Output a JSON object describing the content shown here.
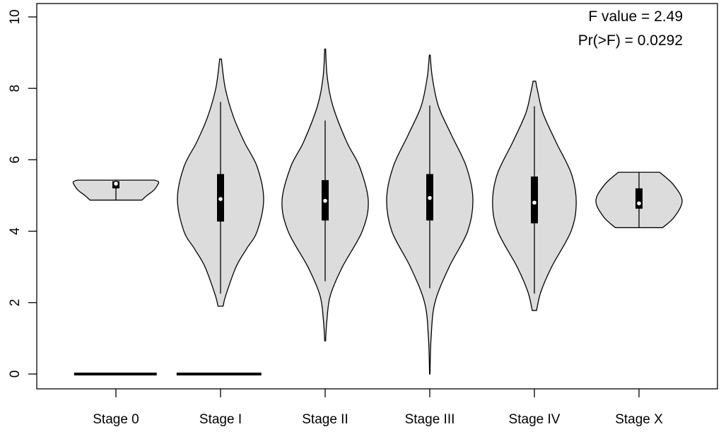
{
  "chart_data": {
    "type": "violin",
    "title": "",
    "xlabel": "",
    "ylabel": "",
    "ylim": [
      0,
      10
    ],
    "yticks": [
      "0",
      "2",
      "4",
      "6",
      "8",
      "10"
    ],
    "grid": false,
    "fill_color": "#dcdcdc",
    "annotations": [
      "F value = 2.49",
      "Pr(>F) = 0.0292"
    ],
    "categories": [
      "Stage 0",
      "Stage I",
      "Stage II",
      "Stage III",
      "Stage IV",
      "Stage X"
    ],
    "violins": [
      {
        "min": 4.87,
        "max": 5.43,
        "whisker_low": 4.87,
        "whisker_high": 5.43,
        "q1": 5.2,
        "median": 5.33,
        "q3": 5.4,
        "density": [
          [
            4.87,
            0.6
          ],
          [
            5.0,
            0.72
          ],
          [
            5.15,
            0.88
          ],
          [
            5.3,
            0.97
          ],
          [
            5.38,
            0.99
          ],
          [
            5.43,
            0.9
          ]
        ]
      },
      {
        "min": 1.9,
        "max": 8.82,
        "whisker_low": 2.25,
        "whisker_high": 7.62,
        "q1": 4.27,
        "median": 4.9,
        "q3": 5.6,
        "density": [
          [
            1.9,
            0.06
          ],
          [
            2.2,
            0.12
          ],
          [
            3.0,
            0.36
          ],
          [
            3.5,
            0.6
          ],
          [
            4.0,
            0.85
          ],
          [
            4.9,
            1.0
          ],
          [
            5.8,
            0.85
          ],
          [
            6.5,
            0.55
          ],
          [
            7.2,
            0.3
          ],
          [
            8.0,
            0.11
          ],
          [
            8.82,
            0.02
          ]
        ]
      },
      {
        "min": 0.93,
        "max": 9.1,
        "whisker_low": 2.6,
        "whisker_high": 7.1,
        "q1": 4.3,
        "median": 4.85,
        "q3": 5.43,
        "density": [
          [
            0.93,
            0.01
          ],
          [
            1.5,
            0.04
          ],
          [
            2.2,
            0.12
          ],
          [
            3.0,
            0.4
          ],
          [
            4.0,
            0.86
          ],
          [
            4.85,
            1.0
          ],
          [
            5.8,
            0.8
          ],
          [
            6.5,
            0.5
          ],
          [
            7.5,
            0.18
          ],
          [
            8.3,
            0.05
          ],
          [
            9.1,
            0.01
          ]
        ]
      },
      {
        "min": 0.0,
        "max": 8.93,
        "whisker_low": 2.4,
        "whisker_high": 7.52,
        "q1": 4.3,
        "median": 4.93,
        "q3": 5.6,
        "density": [
          [
            0.0,
            0.005
          ],
          [
            1.0,
            0.03
          ],
          [
            2.0,
            0.12
          ],
          [
            3.0,
            0.45
          ],
          [
            4.0,
            0.88
          ],
          [
            4.9,
            1.0
          ],
          [
            5.8,
            0.85
          ],
          [
            6.7,
            0.5
          ],
          [
            7.5,
            0.2
          ],
          [
            8.3,
            0.06
          ],
          [
            8.93,
            0.01
          ]
        ]
      },
      {
        "min": 1.78,
        "max": 8.2,
        "whisker_low": 2.25,
        "whisker_high": 7.5,
        "q1": 4.22,
        "median": 4.8,
        "q3": 5.53,
        "density": [
          [
            1.78,
            0.05
          ],
          [
            2.3,
            0.15
          ],
          [
            3.0,
            0.4
          ],
          [
            4.0,
            0.85
          ],
          [
            4.8,
            0.97
          ],
          [
            5.6,
            0.86
          ],
          [
            6.5,
            0.5
          ],
          [
            7.3,
            0.2
          ],
          [
            7.9,
            0.08
          ],
          [
            8.2,
            0.03
          ]
        ]
      },
      {
        "min": 4.1,
        "max": 5.65,
        "whisker_low": 4.1,
        "whisker_high": 5.65,
        "q1": 4.63,
        "median": 4.78,
        "q3": 5.2,
        "density": [
          [
            4.1,
            0.55
          ],
          [
            4.4,
            0.82
          ],
          [
            4.85,
            1.0
          ],
          [
            5.3,
            0.8
          ],
          [
            5.65,
            0.48
          ]
        ]
      }
    ],
    "zero_lines": [
      [
        0.6,
        1.39
      ],
      [
        1.58,
        2.39
      ]
    ]
  }
}
